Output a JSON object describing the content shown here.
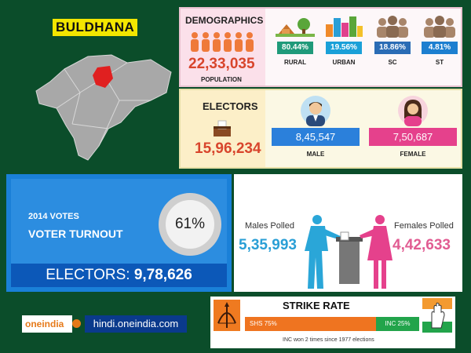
{
  "district": "BULDHANA",
  "colors": {
    "rural": "#1f9a7a",
    "urban": "#1aa0d8",
    "sc": "#2a6cb5",
    "st": "#1c7fd0",
    "male": "#2b80db",
    "female": "#e5418c",
    "shs": "#ef7420",
    "inc": "#22a44b"
  },
  "demographics": {
    "title": "DEMOGRAPHICS",
    "population": "22,33,035",
    "population_label": "POPULATION",
    "items": [
      {
        "label": "RURAL",
        "value": "80.44%",
        "icon": "village-icon"
      },
      {
        "label": "URBAN",
        "value": "19.56%",
        "icon": "city-icon"
      },
      {
        "label": "SC",
        "value": "18.86%",
        "icon": "group-icon"
      },
      {
        "label": "ST",
        "value": "4.81%",
        "icon": "group-icon"
      }
    ]
  },
  "electors": {
    "title": "ELECTORS",
    "total": "15,96,234",
    "male": "8,45,547",
    "male_label": "MALE",
    "female": "7,50,687",
    "female_label": "FEMALE"
  },
  "turnout": {
    "year_label": "2014 VOTES",
    "label": "VOTER TURNOUT",
    "percent": "61%",
    "electors_label": "ELECTORS:",
    "electors_value": "9,78,626"
  },
  "polled": {
    "males_label": "Males Polled",
    "males_value": "5,35,993",
    "females_label": "Females Polled",
    "females_value": "4,42,633"
  },
  "logo": {
    "brand": "oneindia",
    "site": "hindi.oneindia.com"
  },
  "strike_rate": {
    "title": "STRIKE RATE",
    "shs_label": "SHS 75%",
    "shs_value": 75,
    "inc_label": "INC 25%",
    "inc_value": 25,
    "note": "INC won 2 times since 1977 elections"
  }
}
